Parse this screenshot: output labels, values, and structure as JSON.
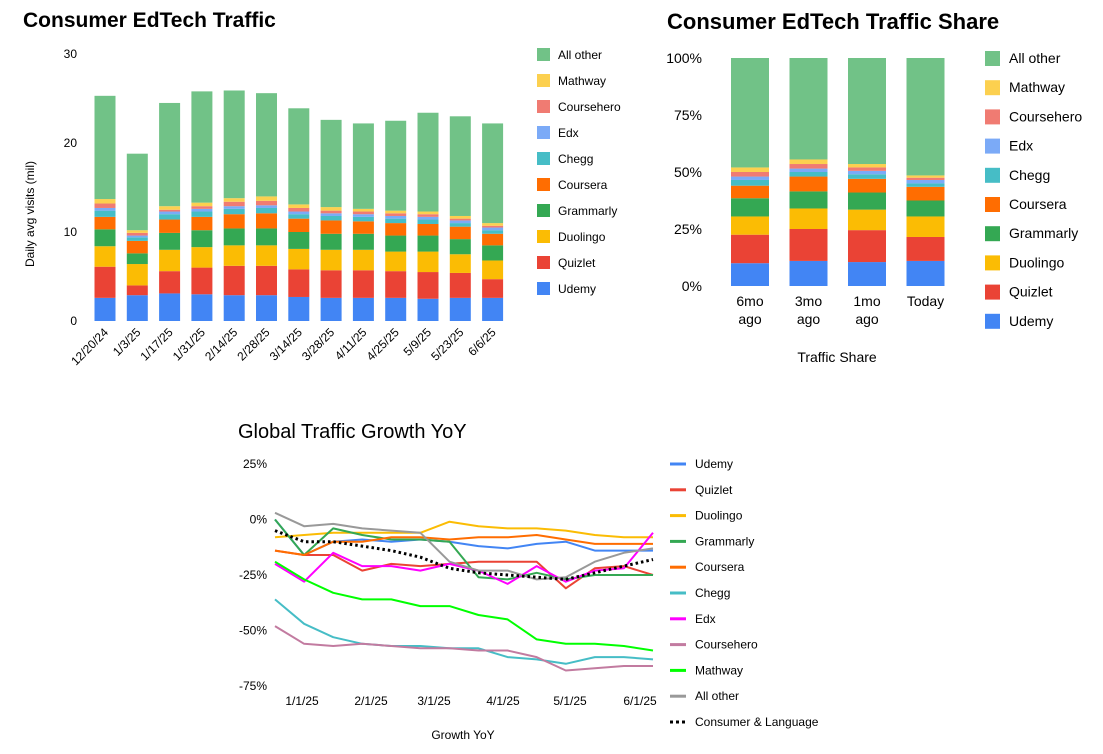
{
  "colors": {
    "Udemy": "#4285f4",
    "Quizlet": "#ea4335",
    "Duolingo": "#fbbc04",
    "Grammarly": "#34a853",
    "Coursera": "#ff6d01",
    "Chegg": "#46bdc6",
    "Edx": "#7baaf7",
    "Coursehero": "#f07b72",
    "Mathway": "#fcd04f",
    "All other": "#71c287",
    "Edx_line": "#ff00ff",
    "Coursehero_line": "#c27ba0",
    "Mathway_line": "#00ff00",
    "All other_line": "#999999",
    "Consumer & Language": "#000000"
  },
  "chart_data": [
    {
      "type": "bar",
      "stacked": true,
      "title": "Consumer EdTech Traffic",
      "ylabel": "Daily avg visits (mil)",
      "ylim": [
        0,
        30
      ],
      "yticks": [
        0,
        10,
        20,
        30
      ],
      "grid": false,
      "legend": "right",
      "categories": [
        "12/20/24",
        "1/3/25",
        "1/17/25",
        "1/31/25",
        "2/14/25",
        "2/28/25",
        "3/14/25",
        "3/28/25",
        "4/11/25",
        "4/25/25",
        "5/9/25",
        "5/23/25",
        "6/6/25"
      ],
      "series": [
        {
          "name": "Udemy",
          "values": [
            2.6,
            2.9,
            3.1,
            3.0,
            2.9,
            2.9,
            2.7,
            2.6,
            2.6,
            2.6,
            2.5,
            2.6,
            2.6
          ]
        },
        {
          "name": "Quizlet",
          "values": [
            3.5,
            1.1,
            2.5,
            3.0,
            3.3,
            3.3,
            3.1,
            3.1,
            3.1,
            3.0,
            3.0,
            2.8,
            2.1
          ]
        },
        {
          "name": "Duolingo",
          "values": [
            2.3,
            2.4,
            2.4,
            2.3,
            2.3,
            2.3,
            2.3,
            2.3,
            2.3,
            2.2,
            2.3,
            2.1,
            2.1
          ]
        },
        {
          "name": "Grammarly",
          "values": [
            1.9,
            1.2,
            1.9,
            1.9,
            1.9,
            1.9,
            1.9,
            1.8,
            1.8,
            1.8,
            1.8,
            1.7,
            1.7
          ]
        },
        {
          "name": "Coursera",
          "values": [
            1.4,
            1.4,
            1.5,
            1.5,
            1.6,
            1.7,
            1.5,
            1.5,
            1.4,
            1.4,
            1.3,
            1.4,
            1.3
          ]
        },
        {
          "name": "Chegg",
          "values": [
            0.7,
            0.4,
            0.6,
            0.6,
            0.6,
            0.6,
            0.5,
            0.5,
            0.5,
            0.5,
            0.5,
            0.4,
            0.4
          ]
        },
        {
          "name": "Edx",
          "values": [
            0.3,
            0.2,
            0.3,
            0.3,
            0.3,
            0.3,
            0.3,
            0.3,
            0.3,
            0.3,
            0.3,
            0.3,
            0.3
          ]
        },
        {
          "name": "Coursehero",
          "values": [
            0.5,
            0.3,
            0.2,
            0.3,
            0.5,
            0.5,
            0.4,
            0.3,
            0.3,
            0.3,
            0.3,
            0.2,
            0.2
          ]
        },
        {
          "name": "Mathway",
          "values": [
            0.5,
            0.3,
            0.4,
            0.4,
            0.4,
            0.5,
            0.4,
            0.4,
            0.3,
            0.3,
            0.3,
            0.3,
            0.3
          ]
        },
        {
          "name": "All other",
          "values": [
            11.6,
            8.6,
            11.6,
            12.5,
            12.1,
            11.6,
            10.8,
            9.8,
            9.6,
            10.1,
            11.1,
            11.2,
            11.2
          ]
        }
      ]
    },
    {
      "type": "bar",
      "stacked": true,
      "percent": true,
      "title": "Consumer EdTech Traffic Share",
      "xlabel": "Traffic Share",
      "ylim": [
        0,
        100
      ],
      "yticks": [
        "0%",
        "25%",
        "50%",
        "75%",
        "100%"
      ],
      "grid": false,
      "legend": "right",
      "categories": [
        "6mo ago",
        "3mo ago",
        "1mo ago",
        "Today"
      ],
      "series": [
        {
          "name": "Udemy",
          "values": [
            10,
            11,
            10.5,
            11
          ]
        },
        {
          "name": "Quizlet",
          "values": [
            12.5,
            14,
            14,
            10.5
          ]
        },
        {
          "name": "Duolingo",
          "values": [
            8,
            9,
            9,
            9
          ]
        },
        {
          "name": "Grammarly",
          "values": [
            8,
            7.5,
            7.5,
            7
          ]
        },
        {
          "name": "Coursera",
          "values": [
            5.5,
            6.5,
            6,
            6
          ]
        },
        {
          "name": "Chegg",
          "values": [
            2.5,
            2,
            2,
            1.5
          ]
        },
        {
          "name": "Edx",
          "values": [
            1.5,
            1.5,
            1.5,
            1.5
          ]
        },
        {
          "name": "Coursehero",
          "values": [
            2,
            2,
            1.5,
            1
          ]
        },
        {
          "name": "Mathway",
          "values": [
            2,
            2,
            1.5,
            1
          ]
        },
        {
          "name": "All other",
          "values": [
            48,
            44.5,
            46.5,
            51.5
          ]
        }
      ]
    },
    {
      "type": "line",
      "title": "Global Traffic Growth YoY",
      "xlabel": "Growth YoY",
      "ylim": [
        -75,
        25
      ],
      "yticks": [
        "25%",
        "0%",
        "-25%",
        "-50%",
        "-75%"
      ],
      "xticks": [
        "1/1/25",
        "2/1/25",
        "3/1/25",
        "4/1/25",
        "5/1/25",
        "6/1/25"
      ],
      "grid": false,
      "legend": "right",
      "x": [
        "12/13/24",
        "12/27/24",
        "1/10/25",
        "1/24/25",
        "2/7/25",
        "2/21/25",
        "3/7/25",
        "3/21/25",
        "4/4/25",
        "4/18/25",
        "5/2/25",
        "5/16/25",
        "5/30/25",
        "6/13/25"
      ],
      "series": [
        {
          "name": "Udemy",
          "values": [
            0,
            -16,
            -10,
            -9,
            -10,
            -9,
            -10,
            -12,
            -13,
            -11,
            -10,
            -14,
            -14,
            -14
          ]
        },
        {
          "name": "Quizlet",
          "values": [
            -14,
            -16,
            -16,
            -23,
            -20,
            -21,
            -20,
            -19,
            -19,
            -19,
            -31,
            -22,
            -21,
            -25
          ]
        },
        {
          "name": "Duolingo",
          "values": [
            -8,
            -7,
            -6,
            -6,
            -6,
            -6,
            -1,
            -3,
            -4,
            -4,
            -5,
            -7,
            -8,
            -8
          ]
        },
        {
          "name": "Grammarly",
          "values": [
            0,
            -16,
            -4,
            -7,
            -9,
            -9,
            -10,
            -26,
            -27,
            -24,
            -27,
            -25,
            -25,
            -25
          ]
        },
        {
          "name": "Coursera",
          "values": [
            -14,
            -16,
            -10,
            -10,
            -8,
            -8,
            -9,
            -8,
            -8,
            -7,
            -9,
            -11,
            -11,
            -11
          ]
        },
        {
          "name": "Chegg",
          "values": [
            -36,
            -47,
            -53,
            -56,
            -57,
            -57,
            -58,
            -58,
            -62,
            -63,
            -65,
            -62,
            -62,
            -63
          ]
        },
        {
          "name": "Edx",
          "values": [
            -20,
            -28,
            -15,
            -21,
            -21,
            -23,
            -20,
            -23,
            -29,
            -21,
            -28,
            -23,
            -22,
            -6
          ]
        },
        {
          "name": "Coursehero",
          "values": [
            -48,
            -56,
            -57,
            -56,
            -57,
            -58,
            -58,
            -59,
            -59,
            -62,
            -68,
            -67,
            -66,
            -66
          ]
        },
        {
          "name": "Mathway",
          "values": [
            -19,
            -27,
            -33,
            -36,
            -36,
            -39,
            -39,
            -43,
            -45,
            -54,
            -56,
            -56,
            -57,
            -59
          ]
        },
        {
          "name": "All other",
          "values": [
            3,
            -3,
            -2,
            -4,
            -5,
            -6,
            -19,
            -23,
            -23,
            -27,
            -26,
            -19,
            -15,
            -13
          ]
        },
        {
          "name": "Consumer & Language",
          "values": [
            -5,
            -10,
            -10,
            -12,
            -14,
            -17,
            -22,
            -24,
            -25,
            -26,
            -27,
            -24,
            -21,
            -18
          ]
        }
      ]
    }
  ]
}
